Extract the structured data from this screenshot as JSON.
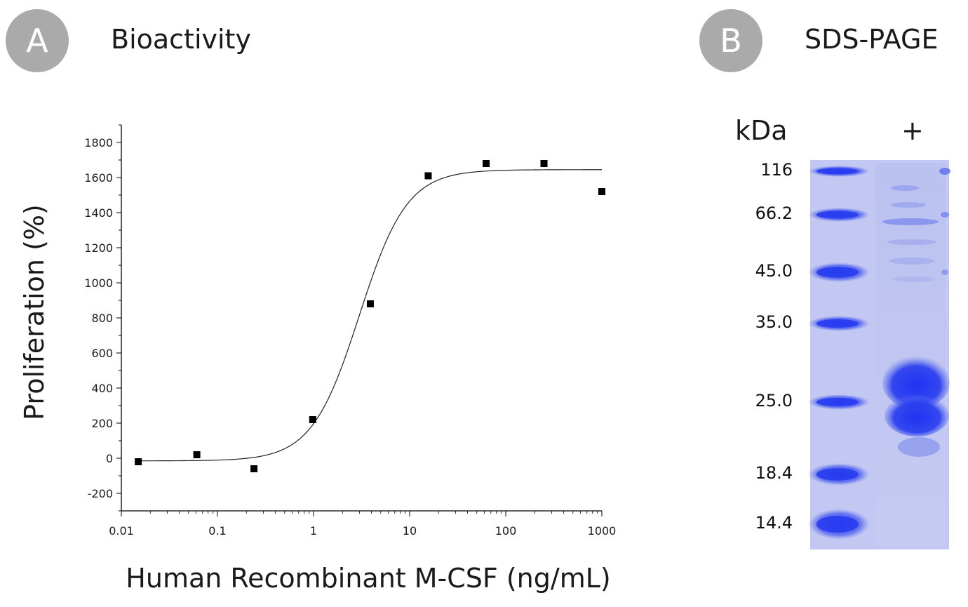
{
  "panel_a": {
    "badge": "A",
    "title": "Bioactivity"
  },
  "panel_b": {
    "badge": "B",
    "title": "SDS-PAGE",
    "unit_label": "kDa",
    "lane_label": "+",
    "marker_labels": [
      "116",
      "66.2",
      "45.0",
      "35.0",
      "25.0",
      "18.4",
      "14.4"
    ]
  },
  "chart_data": {
    "type": "scatter",
    "title": "",
    "xlabel": "Human Recombinant M-CSF (ng/mL)",
    "ylabel": "Proliferation (%)",
    "x_scale": "log",
    "xlim": [
      0.01,
      1000
    ],
    "ylim": [
      -300,
      1900
    ],
    "x_ticks": [
      "0.01",
      "0.1",
      "1",
      "10",
      "100",
      "1000"
    ],
    "y_ticks": [
      "-200",
      "0",
      "200",
      "400",
      "600",
      "800",
      "1000",
      "1200",
      "1400",
      "1600",
      "1800"
    ],
    "series": [
      {
        "x": [
          0.015,
          0.061,
          0.24,
          0.98,
          3.9,
          15.6,
          62.5,
          250,
          1000
        ],
        "y": [
          -20,
          20,
          -60,
          220,
          880,
          1610,
          1680,
          1680,
          1520
        ]
      }
    ],
    "fit": {
      "curve": "4-parameter logistic",
      "bottom": -15,
      "top": 1645,
      "ec50": 3.0,
      "hill": 1.75
    },
    "grid": false,
    "legend": "none"
  }
}
